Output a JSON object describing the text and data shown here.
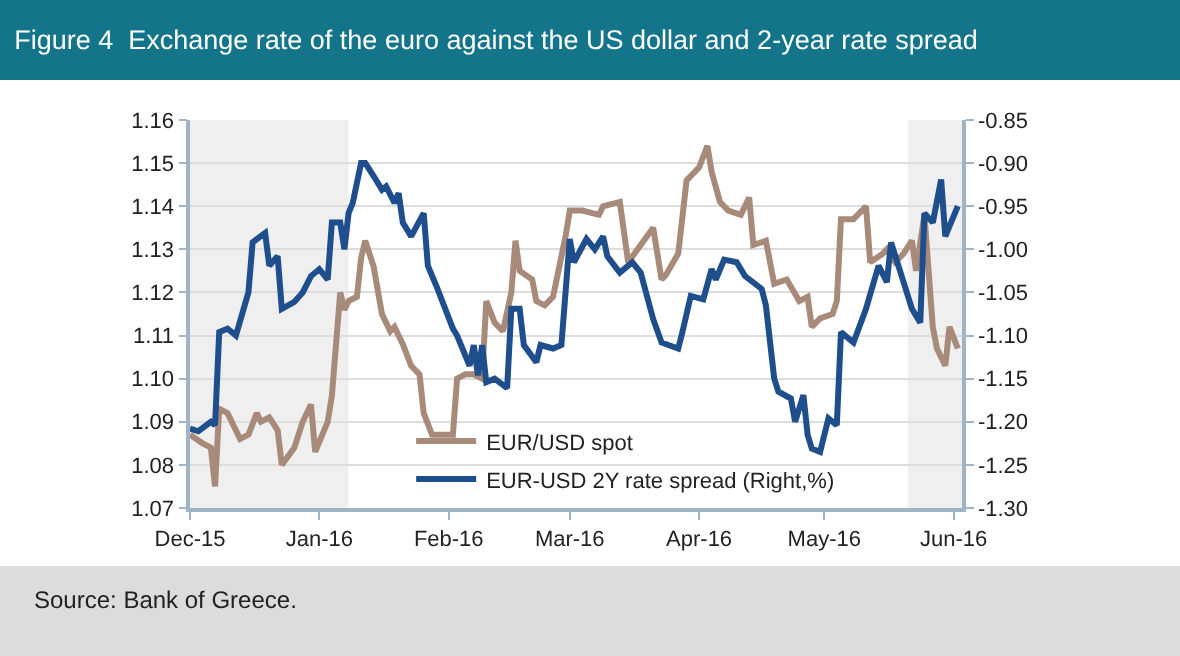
{
  "chart_data": {
    "type": "line",
    "title": "Figure 4  Exchange rate of the euro against the US dollar and 2-year rate spread",
    "annotations": [
      "Source: Bank of Greece."
    ],
    "series": [
      {
        "name": "EUR/USD spot",
        "color": "#a88a7a",
        "x": [
          "2015-12-01",
          "2015-12-04",
          "2015-12-06",
          "2015-12-07",
          "2015-12-08",
          "2015-12-10",
          "2015-12-13",
          "2015-12-15",
          "2015-12-17",
          "2015-12-18",
          "2015-12-20",
          "2015-12-22",
          "2015-12-23",
          "2015-12-26",
          "2015-12-28",
          "2015-12-30",
          "2015-12-31",
          "2016-01-03",
          "2016-01-04",
          "2016-01-06",
          "2016-01-07",
          "2016-01-08",
          "2016-01-10",
          "2016-01-11",
          "2016-01-12",
          "2016-01-14",
          "2016-01-16",
          "2016-01-18",
          "2016-01-19",
          "2016-01-21",
          "2016-01-23",
          "2016-01-25",
          "2016-01-26",
          "2016-01-28",
          "2016-02-02",
          "2016-02-03",
          "2016-02-05",
          "2016-02-07",
          "2016-02-09",
          "2016-02-10",
          "2016-02-12",
          "2016-02-14",
          "2016-02-16",
          "2016-02-17",
          "2016-02-18",
          "2016-02-21",
          "2016-02-22",
          "2016-02-24",
          "2016-02-26",
          "2016-02-29",
          "2016-03-01",
          "2016-03-04",
          "2016-03-08",
          "2016-03-09",
          "2016-03-13",
          "2016-03-15",
          "2016-03-18",
          "2016-03-21",
          "2016-03-23",
          "2016-03-24",
          "2016-03-27",
          "2016-03-29",
          "2016-04-01",
          "2016-04-03",
          "2016-04-04",
          "2016-04-06",
          "2016-04-08",
          "2016-04-11",
          "2016-04-13",
          "2016-04-14",
          "2016-04-17",
          "2016-04-19",
          "2016-04-22",
          "2016-04-25",
          "2016-04-27",
          "2016-04-28",
          "2016-04-30",
          "2016-05-03",
          "2016-05-04",
          "2016-05-05",
          "2016-05-08",
          "2016-05-11",
          "2016-05-12",
          "2016-05-15",
          "2016-05-16",
          "2016-05-18",
          "2016-05-20",
          "2016-05-22",
          "2016-05-23",
          "2016-05-25",
          "2016-05-27",
          "2016-05-28",
          "2016-05-30",
          "2016-05-31",
          "2016-06-02"
        ],
        "values": [
          1.087,
          1.085,
          1.084,
          1.075,
          1.093,
          1.092,
          1.086,
          1.087,
          1.092,
          1.09,
          1.091,
          1.088,
          1.08,
          1.084,
          1.09,
          1.094,
          1.083,
          1.09,
          1.096,
          1.12,
          1.116,
          1.118,
          1.119,
          1.128,
          1.132,
          1.126,
          1.115,
          1.111,
          1.112,
          1.108,
          1.103,
          1.101,
          1.092,
          1.087,
          1.087,
          1.1,
          1.101,
          1.101,
          1.1,
          1.118,
          1.113,
          1.111,
          1.12,
          1.132,
          1.125,
          1.123,
          1.118,
          1.117,
          1.119,
          1.133,
          1.139,
          1.139,
          1.138,
          1.14,
          1.141,
          1.127,
          1.131,
          1.135,
          1.123,
          1.124,
          1.129,
          1.146,
          1.149,
          1.154,
          1.148,
          1.141,
          1.139,
          1.138,
          1.142,
          1.131,
          1.132,
          1.122,
          1.123,
          1.118,
          1.119,
          1.112,
          1.114,
          1.115,
          1.118,
          1.137,
          1.137,
          1.14,
          1.127,
          1.129,
          1.13,
          1.127,
          1.129,
          1.132,
          1.125,
          1.138,
          1.112,
          1.107,
          1.103,
          1.112,
          1.107
        ]
      },
      {
        "name": "EUR-USD 2Y rate spread (Right,%)",
        "color": "#1f4e8c",
        "axis": "y2",
        "x": [
          "2015-12-01",
          "2015-12-03",
          "2015-12-06",
          "2015-12-07",
          "2015-12-08",
          "2015-12-10",
          "2015-12-12",
          "2015-12-15",
          "2015-12-16",
          "2015-12-19",
          "2015-12-20",
          "2015-12-22",
          "2015-12-23",
          "2015-12-26",
          "2015-12-28",
          "2015-12-30",
          "2016-01-01",
          "2016-01-03",
          "2016-01-04",
          "2016-01-06",
          "2016-01-07",
          "2016-01-08",
          "2016-01-09",
          "2016-01-11",
          "2016-01-12",
          "2016-01-14",
          "2016-01-16",
          "2016-01-17",
          "2016-01-19",
          "2016-01-20",
          "2016-01-21",
          "2016-01-23",
          "2016-01-26",
          "2016-01-27",
          "2016-01-29",
          "2016-02-02",
          "2016-02-03",
          "2016-02-06",
          "2016-02-07",
          "2016-02-08",
          "2016-02-09",
          "2016-02-10",
          "2016-02-12",
          "2016-02-15",
          "2016-02-16",
          "2016-02-18",
          "2016-02-19",
          "2016-02-22",
          "2016-02-23",
          "2016-02-26",
          "2016-02-28",
          "2016-03-01",
          "2016-03-02",
          "2016-03-05",
          "2016-03-07",
          "2016-03-09",
          "2016-03-10",
          "2016-03-13",
          "2016-03-16",
          "2016-03-18",
          "2016-03-21",
          "2016-03-23",
          "2016-03-27",
          "2016-03-28",
          "2016-03-30",
          "2016-04-02",
          "2016-04-04",
          "2016-04-05",
          "2016-04-07",
          "2016-04-10",
          "2016-04-12",
          "2016-04-16",
          "2016-04-17",
          "2016-04-19",
          "2016-04-20",
          "2016-04-23",
          "2016-04-24",
          "2016-04-26",
          "2016-04-27",
          "2016-04-28",
          "2016-04-30",
          "2016-05-02",
          "2016-05-04",
          "2016-05-05",
          "2016-05-08",
          "2016-05-11",
          "2016-05-14",
          "2016-05-16",
          "2016-05-17",
          "2016-05-20",
          "2016-05-22",
          "2016-05-24",
          "2016-05-25",
          "2016-05-27",
          "2016-05-29",
          "2016-05-30",
          "2016-06-02"
        ],
        "values": [
          -1.208,
          -1.211,
          -1.2,
          -1.204,
          -1.096,
          -1.092,
          -1.1,
          -1.05,
          -0.992,
          -0.981,
          -1.019,
          -1.008,
          -1.069,
          -1.061,
          -1.05,
          -1.031,
          -1.023,
          -1.035,
          -0.969,
          -0.969,
          -1.0,
          -0.958,
          -0.946,
          -0.9,
          -0.9,
          -0.915,
          -0.931,
          -0.927,
          -0.946,
          -0.935,
          -0.969,
          -0.985,
          -0.958,
          -1.019,
          -1.042,
          -1.092,
          -1.1,
          -1.135,
          -1.111,
          -1.146,
          -1.111,
          -1.154,
          -1.15,
          -1.161,
          -1.069,
          -1.069,
          -1.111,
          -1.131,
          -1.111,
          -1.115,
          -1.111,
          -0.988,
          -1.015,
          -0.988,
          -1.0,
          -0.985,
          -1.008,
          -1.027,
          -1.015,
          -1.027,
          -1.081,
          -1.108,
          -1.115,
          -1.096,
          -1.054,
          -1.058,
          -1.023,
          -1.035,
          -1.012,
          -1.015,
          -1.031,
          -1.046,
          -1.065,
          -1.15,
          -1.165,
          -1.173,
          -1.2,
          -1.169,
          -1.215,
          -1.231,
          -1.235,
          -1.196,
          -1.204,
          -1.096,
          -1.108,
          -1.069,
          -1.019,
          -1.038,
          -0.992,
          -1.038,
          -1.069,
          -1.085,
          -0.958,
          -0.969,
          -0.919,
          -0.985,
          -0.95
        ]
      }
    ],
    "xlim": [
      "2015-12-01",
      "2016-06-03"
    ],
    "xticks": [
      {
        "value": "2015-12-01",
        "label": "Dec-15"
      },
      {
        "value": "2016-01-01",
        "label": "Jan-16"
      },
      {
        "value": "2016-02-01",
        "label": "Feb-16"
      },
      {
        "value": "2016-03-01",
        "label": "Mar-16"
      },
      {
        "value": "2016-04-01",
        "label": "Apr-16"
      },
      {
        "value": "2016-05-01",
        "label": "May-16"
      },
      {
        "value": "2016-06-01",
        "label": "Jun-16"
      }
    ],
    "ylim": [
      1.07,
      1.16
    ],
    "yticks": [
      {
        "value": 1.07,
        "label": "1.07"
      },
      {
        "value": 1.08,
        "label": "1.08"
      },
      {
        "value": 1.09,
        "label": "1.09"
      },
      {
        "value": 1.1,
        "label": "1.10"
      },
      {
        "value": 1.11,
        "label": "1.11"
      },
      {
        "value": 1.12,
        "label": "1.12"
      },
      {
        "value": 1.13,
        "label": "1.13"
      },
      {
        "value": 1.14,
        "label": "1.14"
      },
      {
        "value": 1.15,
        "label": "1.15"
      },
      {
        "value": 1.16,
        "label": "1.16"
      }
    ],
    "y2lim": [
      -1.3,
      -0.85
    ],
    "y2ticks": [
      {
        "value": -1.3,
        "label": "-1.30"
      },
      {
        "value": -1.25,
        "label": "-1.25"
      },
      {
        "value": -1.2,
        "label": "-1.20"
      },
      {
        "value": -1.15,
        "label": "-1.15"
      },
      {
        "value": -1.1,
        "label": "-1.10"
      },
      {
        "value": -1.05,
        "label": "-1.05"
      },
      {
        "value": -1.0,
        "label": "-1.00"
      },
      {
        "value": -0.95,
        "label": "-0.95"
      },
      {
        "value": -0.9,
        "label": "-0.90"
      },
      {
        "value": -0.85,
        "label": "-0.85"
      }
    ],
    "bands": [
      {
        "axis": "x",
        "from": "2015-12-01",
        "to": "2016-01-08",
        "color": "#efefef"
      },
      {
        "axis": "x",
        "from": "2016-05-21",
        "to": "2016-06-03",
        "color": "#efefef"
      }
    ],
    "grid": "y",
    "legend": "bottom",
    "line_style": "solid",
    "marker": "none"
  }
}
